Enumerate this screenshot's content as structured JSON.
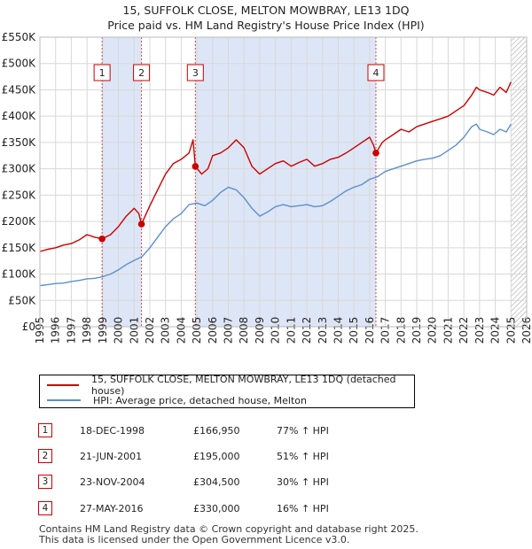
{
  "colors": {
    "price_paid": "#cc0000",
    "hpi": "#5b8fcf",
    "shade": "#dde6f6",
    "marker_border": "#cc0000"
  },
  "chart_data": {
    "type": "line",
    "title": "15, SUFFOLK CLOSE, MELTON MOWBRAY, LE13 1DQ",
    "subtitle": "Price paid vs. HM Land Registry's House Price Index (HPI)",
    "x_range": [
      1995,
      2026
    ],
    "ylim": [
      0,
      550000
    ],
    "y_ticks": [
      {
        "value": 0,
        "label": "£0"
      },
      {
        "value": 50000,
        "label": "£50K"
      },
      {
        "value": 100000,
        "label": "£100K"
      },
      {
        "value": 150000,
        "label": "£150K"
      },
      {
        "value": 200000,
        "label": "£200K"
      },
      {
        "value": 250000,
        "label": "£250K"
      },
      {
        "value": 300000,
        "label": "£300K"
      },
      {
        "value": 350000,
        "label": "£350K"
      },
      {
        "value": 400000,
        "label": "£400K"
      },
      {
        "value": 450000,
        "label": "£450K"
      },
      {
        "value": 500000,
        "label": "£500K"
      },
      {
        "value": 550000,
        "label": "£550K"
      }
    ],
    "x_ticks": [
      "1995",
      "1996",
      "1997",
      "1998",
      "1999",
      "2000",
      "2001",
      "2002",
      "2003",
      "2004",
      "2005",
      "2006",
      "2007",
      "2008",
      "2009",
      "2010",
      "2011",
      "2012",
      "2013",
      "2014",
      "2015",
      "2016",
      "2017",
      "2018",
      "2019",
      "2020",
      "2021",
      "2022",
      "2023",
      "2024",
      "2025",
      "2026"
    ],
    "shaded_periods": [
      [
        1998.96,
        2001.47
      ],
      [
        2004.9,
        2016.4
      ]
    ],
    "forecast_start": 2025.0,
    "series": [
      {
        "name": "15, SUFFOLK CLOSE, MELTON MOWBRAY, LE13 1DQ (detached house)",
        "color": "#cc0000",
        "x": [
          1995.0,
          1995.5,
          1996.0,
          1996.5,
          1997.0,
          1997.5,
          1998.0,
          1998.5,
          1998.96,
          1999.5,
          2000.0,
          2000.5,
          2001.0,
          2001.3,
          2001.47,
          2002.0,
          2002.5,
          2003.0,
          2003.5,
          2004.0,
          2004.5,
          2004.75,
          2004.9,
          2005.3,
          2005.7,
          2006.0,
          2006.5,
          2007.0,
          2007.5,
          2008.0,
          2008.5,
          2009.0,
          2009.5,
          2010.0,
          2010.5,
          2011.0,
          2011.5,
          2012.0,
          2012.5,
          2013.0,
          2013.5,
          2014.0,
          2014.5,
          2015.0,
          2015.5,
          2016.0,
          2016.25,
          2016.4,
          2016.8,
          2017.0,
          2017.5,
          2018.0,
          2018.5,
          2019.0,
          2019.5,
          2020.0,
          2020.5,
          2021.0,
          2021.5,
          2022.0,
          2022.5,
          2022.8,
          2023.0,
          2023.5,
          2023.9,
          2024.3,
          2024.7,
          2025.0
        ],
        "values": [
          143000,
          147000,
          150000,
          155000,
          158000,
          165000,
          175000,
          170000,
          166950,
          175000,
          190000,
          210000,
          225000,
          215000,
          195000,
          230000,
          260000,
          290000,
          310000,
          318000,
          330000,
          355000,
          304500,
          290000,
          300000,
          325000,
          330000,
          340000,
          355000,
          340000,
          305000,
          290000,
          300000,
          310000,
          315000,
          305000,
          312000,
          318000,
          305000,
          310000,
          318000,
          322000,
          330000,
          340000,
          350000,
          360000,
          345000,
          330000,
          350000,
          355000,
          365000,
          375000,
          370000,
          380000,
          385000,
          390000,
          395000,
          400000,
          410000,
          420000,
          440000,
          455000,
          450000,
          445000,
          440000,
          455000,
          445000,
          465000
        ]
      },
      {
        "name": "HPI: Average price, detached house, Melton",
        "color": "#5b8fcf",
        "x": [
          1995.0,
          1995.5,
          1996.0,
          1996.5,
          1997.0,
          1997.5,
          1998.0,
          1998.5,
          1999.0,
          1999.5,
          2000.0,
          2000.5,
          2001.0,
          2001.5,
          2002.0,
          2002.5,
          2003.0,
          2003.5,
          2004.0,
          2004.5,
          2005.0,
          2005.5,
          2006.0,
          2006.5,
          2007.0,
          2007.5,
          2008.0,
          2008.5,
          2009.0,
          2009.5,
          2010.0,
          2010.5,
          2011.0,
          2011.5,
          2012.0,
          2012.5,
          2013.0,
          2013.5,
          2014.0,
          2014.5,
          2015.0,
          2015.5,
          2016.0,
          2016.5,
          2017.0,
          2017.5,
          2018.0,
          2018.5,
          2019.0,
          2019.5,
          2020.0,
          2020.5,
          2021.0,
          2021.5,
          2022.0,
          2022.5,
          2022.8,
          2023.0,
          2023.5,
          2023.9,
          2024.3,
          2024.7,
          2025.0
        ],
        "values": [
          78000,
          80000,
          82000,
          83000,
          86000,
          88000,
          91000,
          92000,
          95000,
          100000,
          108000,
          118000,
          126000,
          133000,
          150000,
          170000,
          190000,
          205000,
          215000,
          232000,
          235000,
          230000,
          240000,
          255000,
          265000,
          260000,
          245000,
          225000,
          210000,
          218000,
          228000,
          232000,
          228000,
          230000,
          232000,
          228000,
          230000,
          238000,
          248000,
          258000,
          265000,
          270000,
          280000,
          285000,
          295000,
          300000,
          305000,
          310000,
          315000,
          318000,
          320000,
          325000,
          335000,
          345000,
          360000,
          380000,
          385000,
          375000,
          370000,
          365000,
          375000,
          370000,
          385000
        ]
      }
    ],
    "sales": [
      {
        "label": "1",
        "x": 1998.96,
        "value": 166950
      },
      {
        "label": "2",
        "x": 2001.47,
        "value": 195000
      },
      {
        "label": "3",
        "x": 2004.9,
        "value": 304500
      },
      {
        "label": "4",
        "x": 2016.4,
        "value": 330000
      }
    ]
  },
  "legend": {
    "price_paid_label": "15, SUFFOLK CLOSE, MELTON MOWBRAY, LE13 1DQ (detached house)",
    "hpi_label": "HPI: Average price, detached house, Melton"
  },
  "sales_table": [
    {
      "num": "1",
      "date": "18-DEC-1998",
      "price": "£166,950",
      "hpi": "77% ↑ HPI"
    },
    {
      "num": "2",
      "date": "21-JUN-2001",
      "price": "£195,000",
      "hpi": "51% ↑ HPI"
    },
    {
      "num": "3",
      "date": "23-NOV-2004",
      "price": "£304,500",
      "hpi": "30% ↑ HPI"
    },
    {
      "num": "4",
      "date": "27-MAY-2016",
      "price": "£330,000",
      "hpi": "16% ↑ HPI"
    }
  ],
  "footer": {
    "line1": "Contains HM Land Registry data © Crown copyright and database right 2025.",
    "line2": "This data is licensed under the Open Government Licence v3.0."
  }
}
